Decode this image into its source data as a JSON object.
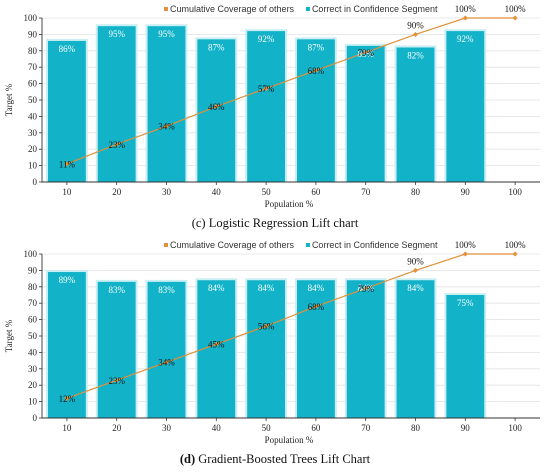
{
  "colors": {
    "bar": "#12b2c8",
    "bar_light": "#c9eef4",
    "line": "#e0913a",
    "axis": "#333333",
    "grid": "#e2e2e2"
  },
  "chart_data": [
    {
      "type": "bar",
      "caption_label": "(c)",
      "caption_text": "Logistic Regression Lift chart",
      "xlabel": "Population %",
      "ylabel": "Target %",
      "ylim": [
        0,
        100
      ],
      "yticks": [
        0,
        10,
        20,
        30,
        40,
        50,
        60,
        70,
        80,
        90,
        100
      ],
      "grid": true,
      "legend_position": "top",
      "categories": [
        "10",
        "20",
        "30",
        "40",
        "50",
        "60",
        "70",
        "80",
        "90",
        "100"
      ],
      "series": [
        {
          "name": "Cumulative Coverage of others",
          "kind": "line",
          "values": [
            11,
            23,
            34,
            46,
            57,
            68,
            79,
            90,
            100,
            100
          ],
          "labels": [
            "11%",
            "23%",
            "34%",
            "46%",
            "57%",
            "68%",
            "79%",
            "90%",
            "100%",
            "100%"
          ]
        },
        {
          "name": "Correct in Confidence Segment",
          "kind": "bar",
          "values": [
            86,
            95,
            95,
            87,
            92,
            87,
            83,
            82,
            92,
            null
          ],
          "labels": [
            "86%",
            "95%",
            "95%",
            "87%",
            "92%",
            "87%",
            "83%",
            "82%",
            "92%",
            ""
          ]
        }
      ]
    },
    {
      "type": "bar",
      "caption_label": "(d)",
      "caption_text": "Gradient-Boosted Trees Lift Chart",
      "xlabel": "Population %",
      "ylabel": "Target %",
      "ylim": [
        0,
        100
      ],
      "yticks": [
        0,
        10,
        20,
        30,
        40,
        50,
        60,
        70,
        80,
        90,
        100
      ],
      "grid": true,
      "legend_position": "top",
      "categories": [
        "10",
        "20",
        "30",
        "40",
        "50",
        "60",
        "70",
        "80",
        "90",
        "100"
      ],
      "series": [
        {
          "name": "Cumulative Coverage of others",
          "kind": "line",
          "values": [
            12,
            23,
            34,
            45,
            56,
            68,
            79,
            90,
            100,
            100
          ],
          "labels": [
            "12%",
            "23%",
            "34%",
            "45%",
            "56%",
            "68%",
            "79%",
            "90%",
            "100%",
            "100%"
          ]
        },
        {
          "name": "Correct in Confidence Segment",
          "kind": "bar",
          "values": [
            89,
            83,
            83,
            84,
            84,
            84,
            84,
            84,
            75,
            null
          ],
          "labels": [
            "89%",
            "83%",
            "83%",
            "84%",
            "84%",
            "84%",
            "84%",
            "84%",
            "75%",
            ""
          ]
        }
      ]
    }
  ]
}
